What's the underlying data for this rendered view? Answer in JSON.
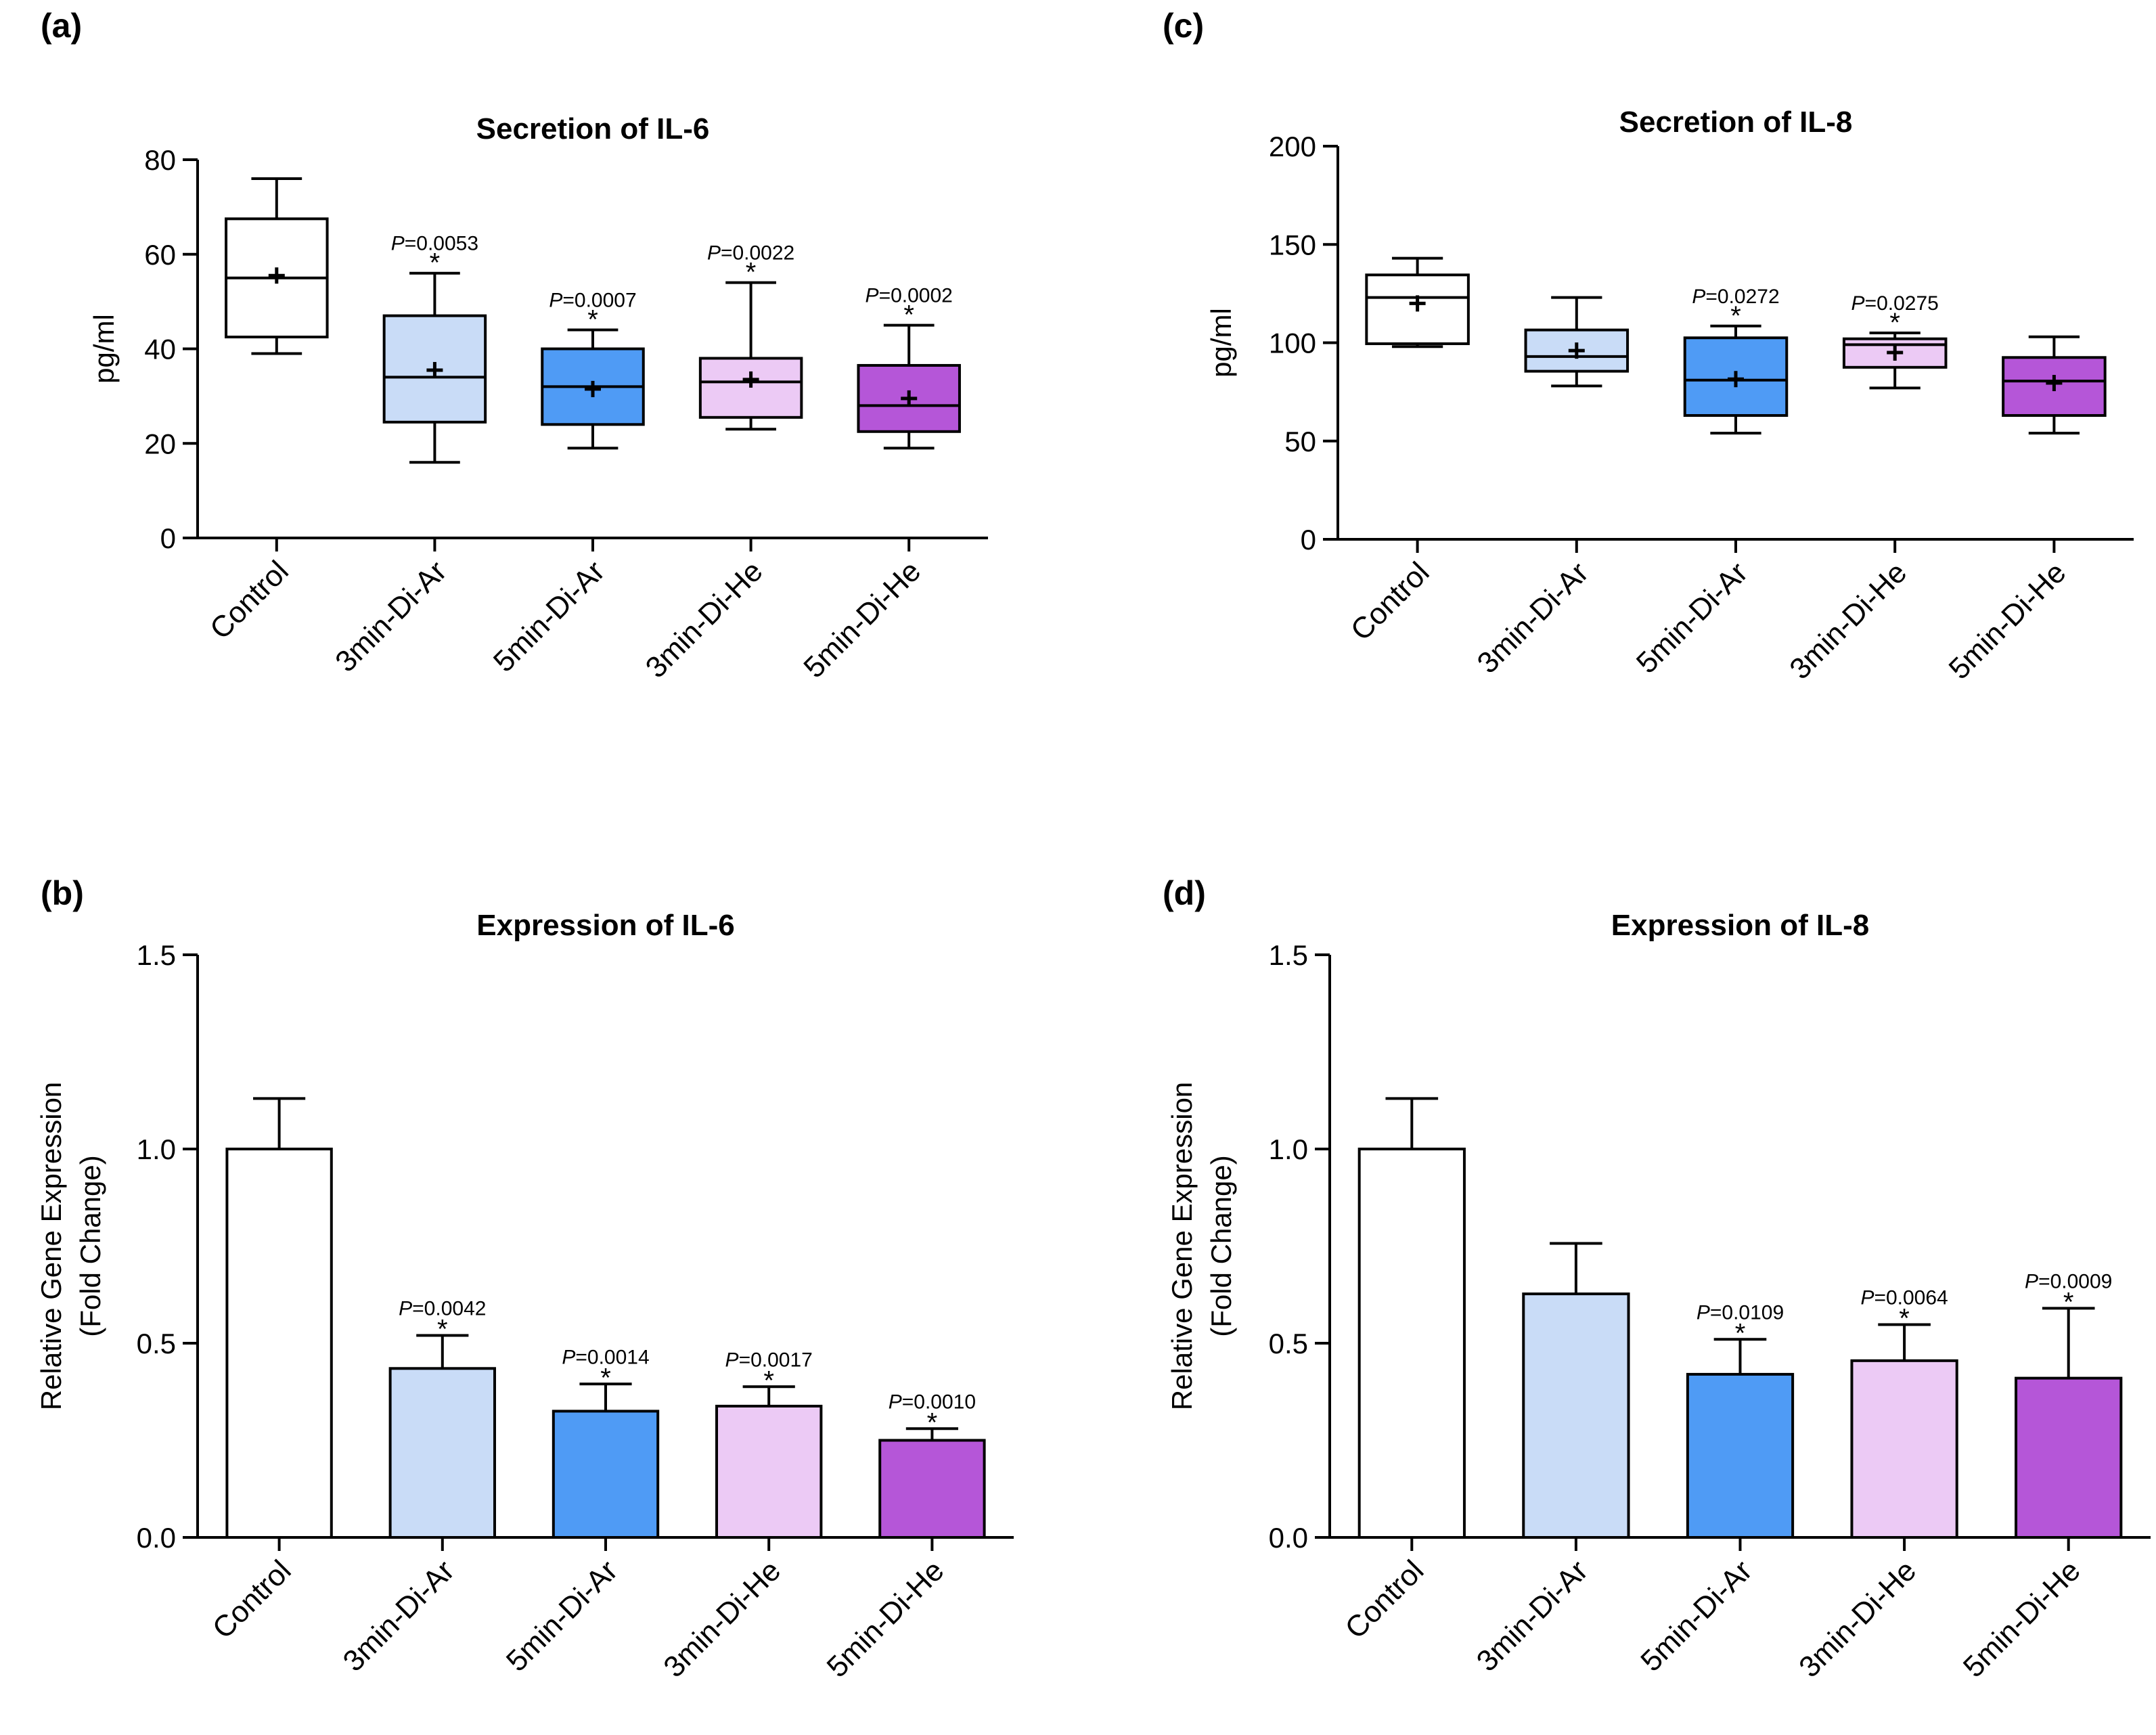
{
  "colors": {
    "Control": "#ffffff",
    "3min-Di-Ar": "#c9dcf7",
    "5min-Di-Ar": "#4f9bf5",
    "3min-Di-He": "#eccaf5",
    "5min-Di-He": "#b556d8",
    "stroke": "#000000"
  },
  "chart_data": [
    {
      "id": "a",
      "panel_label": "(a)",
      "type": "box",
      "title": "Secretion of IL-6",
      "ylabel": "pg/ml",
      "ylabel2": "",
      "xlabel": "",
      "ylim": [
        0,
        80
      ],
      "yticks": [
        0,
        20,
        40,
        60,
        80
      ],
      "ytick_labels": [
        "0",
        "20",
        "40",
        "60",
        "80"
      ],
      "categories": [
        "Control",
        "3min-Di-Ar",
        "5min-Di-Ar",
        "3min-Di-He",
        "5min-Di-He"
      ],
      "boxes": [
        {
          "min": 39,
          "q1": 42.5,
          "median": 55,
          "q3": 67.5,
          "max": 76,
          "mean": 55.5,
          "p": "",
          "sig": ""
        },
        {
          "min": 16,
          "q1": 24.5,
          "median": 34,
          "q3": 47,
          "max": 56,
          "mean": 35.5,
          "p": "=0.0053",
          "sig": "*"
        },
        {
          "min": 19,
          "q1": 24,
          "median": 32,
          "q3": 40,
          "max": 44,
          "mean": 31.5,
          "p": "=0.0007",
          "sig": "*"
        },
        {
          "min": 23,
          "q1": 25.5,
          "median": 33,
          "q3": 38,
          "max": 54,
          "mean": 33.5,
          "p": "=0.0022",
          "sig": "*"
        },
        {
          "min": 19,
          "q1": 22.5,
          "median": 28,
          "q3": 36.5,
          "max": 45,
          "mean": 29.5,
          "p": "=0.0002",
          "sig": "*"
        }
      ]
    },
    {
      "id": "c",
      "panel_label": "(c)",
      "type": "box",
      "title": "Secretion of IL-8",
      "ylabel": "pg/ml",
      "ylabel2": "",
      "xlabel": "",
      "ylim": [
        0,
        200
      ],
      "yticks": [
        0,
        50,
        100,
        150,
        200
      ],
      "ytick_labels": [
        "0",
        "50",
        "100",
        "150",
        "200"
      ],
      "categories": [
        "Control",
        "3min-Di-Ar",
        "5min-Di-Ar",
        "3min-Di-He",
        "5min-Di-He"
      ],
      "boxes": [
        {
          "min": 98,
          "q1": 99.5,
          "median": 123,
          "q3": 134.5,
          "max": 143,
          "mean": 120,
          "p": "",
          "sig": ""
        },
        {
          "min": 78,
          "q1": 85.5,
          "median": 93,
          "q3": 106.5,
          "max": 123,
          "mean": 96,
          "p": "",
          "sig": ""
        },
        {
          "min": 54,
          "q1": 63,
          "median": 81,
          "q3": 102.5,
          "max": 108.5,
          "mean": 81.5,
          "p": "=0.0272",
          "sig": "*"
        },
        {
          "min": 77,
          "q1": 87.5,
          "median": 99,
          "q3": 102,
          "max": 105,
          "mean": 95,
          "p": "=0.0275",
          "sig": "*"
        },
        {
          "min": 54,
          "q1": 63,
          "median": 80.5,
          "q3": 92.5,
          "max": 103,
          "mean": 79.5,
          "p": "",
          "sig": ""
        }
      ]
    },
    {
      "id": "b",
      "panel_label": "(b)",
      "type": "bar",
      "title": "Expression of IL-6",
      "ylabel": "Relative Gene Expression",
      "ylabel2": "(Fold Change)",
      "xlabel": "",
      "ylim": [
        0,
        1.5
      ],
      "yticks": [
        0,
        0.5,
        1.0,
        1.5
      ],
      "ytick_labels": [
        "0.0",
        "0.5",
        "1.0",
        "1.5"
      ],
      "categories": [
        "Control",
        "3min-Di-Ar",
        "5min-Di-Ar",
        "3min-Di-He",
        "5min-Di-He"
      ],
      "values": [
        1.0,
        0.435,
        0.325,
        0.338,
        0.25
      ],
      "errors": [
        0.13,
        0.085,
        0.07,
        0.05,
        0.03
      ],
      "p_values": [
        "",
        "=0.0042",
        "=0.0014",
        "=0.0017",
        "=0.0010"
      ],
      "sig": [
        "",
        "*",
        "*",
        "*",
        "*"
      ]
    },
    {
      "id": "d",
      "panel_label": "(d)",
      "type": "bar",
      "title": "Expression of IL-8",
      "ylabel": "Relative Gene Expression",
      "ylabel2": "(Fold Change)",
      "xlabel": "",
      "ylim": [
        0,
        1.5
      ],
      "yticks": [
        0,
        0.5,
        1.0,
        1.5
      ],
      "ytick_labels": [
        "0.0",
        "0.5",
        "1.0",
        "1.5"
      ],
      "categories": [
        "Control",
        "3min-Di-Ar",
        "5min-Di-Ar",
        "3min-Di-He",
        "5min-Di-He"
      ],
      "values": [
        1.0,
        0.627,
        0.42,
        0.455,
        0.41
      ],
      "errors": [
        0.13,
        0.13,
        0.09,
        0.093,
        0.18
      ],
      "p_values": [
        "",
        "",
        "=0.0109",
        "=0.0064",
        "=0.0009"
      ],
      "sig": [
        "",
        "",
        "*",
        "*",
        "*"
      ]
    }
  ]
}
